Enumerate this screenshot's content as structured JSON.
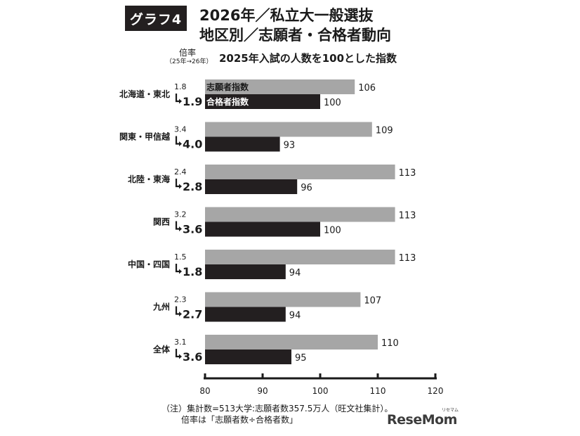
{
  "header": {
    "badge": "グラフ4",
    "title_line1": "2026年／私立大一般選抜",
    "title_line2": "地区別／志願者・合格者動向"
  },
  "ratio_header": {
    "label": "倍率",
    "sub": "（25年→26年）"
  },
  "chart_data": {
    "type": "bar",
    "orientation": "horizontal",
    "title": "2025年入試の人数を100とした指数",
    "categories": [
      "北海道・東北",
      "関東・甲信越",
      "北陸・東海",
      "関西",
      "中国・四国",
      "九州",
      "全体"
    ],
    "series": [
      {
        "name": "志願者指数",
        "values": [
          106,
          109,
          113,
          113,
          113,
          107,
          110
        ],
        "color": "#a6a6a6"
      },
      {
        "name": "合格者指数",
        "values": [
          100,
          93,
          96,
          100,
          94,
          94,
          95
        ],
        "color": "#231f20"
      }
    ],
    "ratio_2025": [
      "1.8",
      "3.4",
      "2.4",
      "3.2",
      "1.5",
      "2.3",
      "3.1"
    ],
    "ratio_2026": [
      "1.9",
      "4.0",
      "2.8",
      "3.6",
      "1.8",
      "2.7",
      "3.6"
    ],
    "xlim": [
      80,
      120
    ],
    "xticks": [
      "80",
      "90",
      "100",
      "110",
      "120"
    ],
    "legend": "inside-bars-first-category"
  },
  "footnote": {
    "line1": "（注）集計数=513大学:志願者数357.5万人（旺文社集計）。",
    "line2": "倍率は「志願者数÷合格者数」"
  },
  "brand": {
    "name": "ReseMom",
    "ruby": "リセマム"
  }
}
